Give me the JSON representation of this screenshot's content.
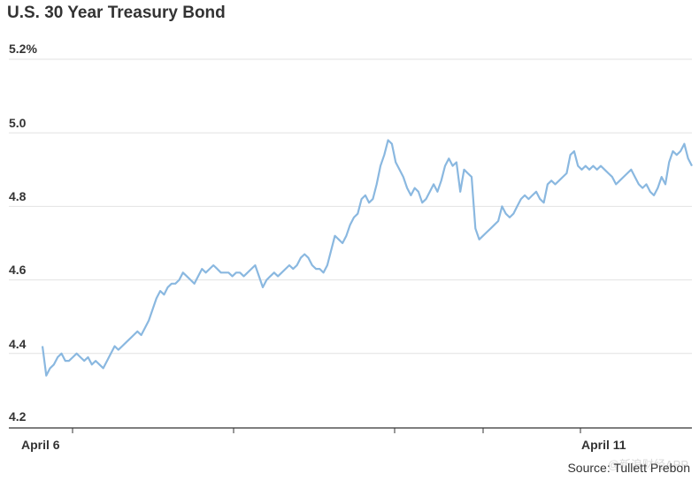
{
  "chart_data": {
    "type": "line",
    "title": "U.S. 30 Year Treasury Bond",
    "ytick_labels": [
      "5.2%",
      "5.0",
      "4.8",
      "4.6",
      "4.4",
      "4.2"
    ],
    "yticks": [
      5.2,
      5.0,
      4.8,
      4.6,
      4.4,
      4.2
    ],
    "ylim": [
      4.2,
      5.2
    ],
    "x_tick_labels": [
      "April 6",
      "April 11"
    ],
    "grid": true,
    "line_color": "#8ab8e0",
    "series": [
      {
        "values": [
          4.42,
          4.34,
          4.36,
          4.37,
          4.39,
          4.4,
          4.38,
          4.38,
          4.39,
          4.4,
          4.39,
          4.38,
          4.39,
          4.37,
          4.38,
          4.37,
          4.36,
          4.38,
          4.4,
          4.42,
          4.41,
          4.42,
          4.43,
          4.44,
          4.45,
          4.46,
          4.45,
          4.47,
          4.49,
          4.52,
          4.55,
          4.57,
          4.56,
          4.58,
          4.59,
          4.59,
          4.6,
          4.62,
          4.61,
          4.6,
          4.59,
          4.61,
          4.63,
          4.62,
          4.63,
          4.64,
          4.63,
          4.62,
          4.62,
          4.62,
          4.61,
          4.62,
          4.62,
          4.61,
          4.62,
          4.63,
          4.64,
          4.61,
          4.58,
          4.6,
          4.61,
          4.62,
          4.61,
          4.62,
          4.63,
          4.64,
          4.63,
          4.64,
          4.66,
          4.67,
          4.66,
          4.64,
          4.63,
          4.63,
          4.62,
          4.64,
          4.68,
          4.72,
          4.71,
          4.7,
          4.72,
          4.75,
          4.77,
          4.78,
          4.82,
          4.83,
          4.81,
          4.82,
          4.86,
          4.91,
          4.94,
          4.98,
          4.97,
          4.92,
          4.9,
          4.88,
          4.85,
          4.83,
          4.85,
          4.84,
          4.81,
          4.82,
          4.84,
          4.86,
          4.84,
          4.87,
          4.91,
          4.93,
          4.91,
          4.92,
          4.84,
          4.9,
          4.89,
          4.88,
          4.74,
          4.71,
          4.72,
          4.73,
          4.74,
          4.75,
          4.76,
          4.8,
          4.78,
          4.77,
          4.78,
          4.8,
          4.82,
          4.83,
          4.82,
          4.83,
          4.84,
          4.82,
          4.81,
          4.86,
          4.87,
          4.86,
          4.87,
          4.88,
          4.89,
          4.94,
          4.95,
          4.91,
          4.9,
          4.91,
          4.9,
          4.91,
          4.9,
          4.91,
          4.9,
          4.89,
          4.88,
          4.86,
          4.87,
          4.88,
          4.89,
          4.9,
          4.88,
          4.86,
          4.85,
          4.86,
          4.84,
          4.83,
          4.85,
          4.88,
          4.86,
          4.92,
          4.95,
          4.94,
          4.95,
          4.97,
          4.93,
          4.91
        ]
      }
    ],
    "source": "Source: Tullett Prebon"
  },
  "watermark": "@新浪财经APP"
}
